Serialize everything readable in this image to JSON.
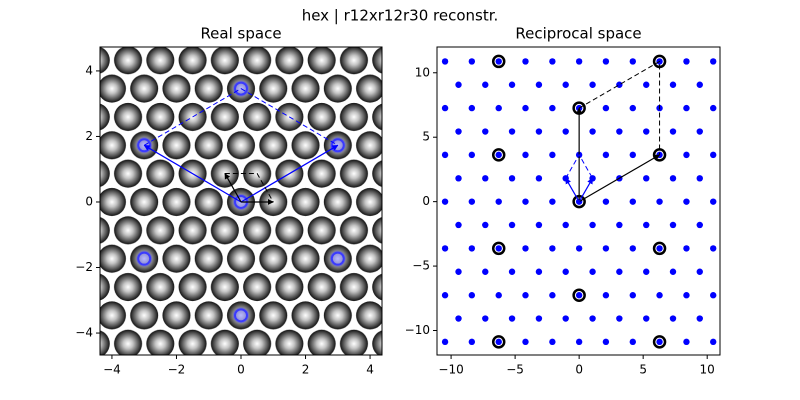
{
  "suptitle": "hex | r12xr12r30 reconstr.",
  "chart_data": [
    {
      "type": "scatter",
      "title": "Real space",
      "xlim": [
        -4.37,
        4.37
      ],
      "ylim": [
        -4.67,
        4.73
      ],
      "xticks": [
        {
          "value": -4,
          "label": "−4"
        },
        {
          "value": -2,
          "label": "−2"
        },
        0,
        2,
        4
      ],
      "yticks": [
        {
          "value": -4,
          "label": "−4"
        },
        {
          "value": -2,
          "label": "−2"
        },
        0,
        2,
        4
      ],
      "highlight": {
        "color": "#3a3aff",
        "x": [
          0,
          3,
          -3,
          0,
          3,
          -3,
          0
        ],
        "y": [
          0,
          1.73,
          1.73,
          3.46,
          -1.73,
          -1.73,
          -3.46
        ]
      },
      "vectors": [
        {
          "x": [
            0,
            3
          ],
          "y": [
            0,
            1.73
          ],
          "color": "#0000ff",
          "dashed": false,
          "arrow": true
        },
        {
          "x": [
            0,
            -3
          ],
          "y": [
            0,
            1.73
          ],
          "color": "#0000ff",
          "dashed": false,
          "arrow": true
        },
        {
          "x": [
            -3,
            0,
            3
          ],
          "y": [
            1.73,
            3.46,
            1.73
          ],
          "color": "#0000ff",
          "dashed": true,
          "arrow": false
        },
        {
          "x": [
            0,
            1
          ],
          "y": [
            0,
            0
          ],
          "color": "#000000",
          "dashed": false,
          "arrow": true
        },
        {
          "x": [
            0,
            -0.5
          ],
          "y": [
            0,
            0.87
          ],
          "color": "#000000",
          "dashed": false,
          "arrow": true
        },
        {
          "x": [
            -0.5,
            0.5,
            1
          ],
          "y": [
            0.87,
            0.87,
            0
          ],
          "color": "#000000",
          "dashed": true,
          "arrow": false
        }
      ]
    },
    {
      "type": "scatter",
      "title": "Reciprocal space",
      "xlim": [
        -11.1,
        11.0
      ],
      "ylim": [
        -11.9,
        12.0
      ],
      "xticks": [
        {
          "value": -10,
          "label": "−10"
        },
        {
          "value": -5,
          "label": "−5"
        },
        0,
        5,
        10
      ],
      "yticks": [
        {
          "value": -10,
          "label": "−10"
        },
        {
          "value": -5,
          "label": "−5"
        },
        0,
        5,
        10
      ],
      "points": {
        "color": "#0000ff",
        "rows": [
          {
            "y": -10.88,
            "x": [
              -10.47,
              -8.38,
              -6.28,
              -4.19,
              -2.09,
              0,
              2.09,
              4.19,
              6.28,
              8.38,
              10.47
            ]
          },
          {
            "y": -9.07,
            "x": [
              -9.42,
              -7.33,
              -5.24,
              -3.14,
              -1.05,
              1.05,
              3.14,
              5.24,
              7.33,
              9.42
            ]
          },
          {
            "y": -7.26,
            "x": [
              -10.47,
              -8.38,
              -6.28,
              -4.19,
              -2.09,
              0,
              2.09,
              4.19,
              6.28,
              8.38,
              10.47
            ]
          },
          {
            "y": -5.44,
            "x": [
              -9.42,
              -7.33,
              -5.24,
              -3.14,
              -1.05,
              1.05,
              3.14,
              5.24,
              7.33,
              9.42
            ]
          },
          {
            "y": -3.63,
            "x": [
              -10.47,
              -8.38,
              -6.28,
              -4.19,
              -2.09,
              0,
              2.09,
              4.19,
              6.28,
              8.38,
              10.47
            ]
          },
          {
            "y": -1.81,
            "x": [
              -9.42,
              -7.33,
              -5.24,
              -3.14,
              -1.05,
              1.05,
              3.14,
              5.24,
              7.33,
              9.42
            ]
          },
          {
            "y": 0,
            "x": [
              -10.47,
              -8.38,
              -6.28,
              -4.19,
              -2.09,
              0,
              2.09,
              4.19,
              6.28,
              8.38,
              10.47
            ]
          },
          {
            "y": 1.81,
            "x": [
              -9.42,
              -7.33,
              -5.24,
              -3.14,
              -1.05,
              1.05,
              3.14,
              5.24,
              7.33,
              9.42
            ]
          },
          {
            "y": 3.63,
            "x": [
              -10.47,
              -8.38,
              -6.28,
              -4.19,
              -2.09,
              0,
              2.09,
              4.19,
              6.28,
              8.38,
              10.47
            ]
          },
          {
            "y": 5.44,
            "x": [
              -9.42,
              -7.33,
              -5.24,
              -3.14,
              -1.05,
              1.05,
              3.14,
              5.24,
              7.33,
              9.42
            ]
          },
          {
            "y": 7.26,
            "x": [
              -10.47,
              -8.38,
              -6.28,
              -4.19,
              -2.09,
              0,
              2.09,
              4.19,
              6.28,
              8.38,
              10.47
            ]
          },
          {
            "y": 9.07,
            "x": [
              -9.42,
              -7.33,
              -5.24,
              -3.14,
              -1.05,
              1.05,
              3.14,
              5.24,
              7.33,
              9.42
            ]
          },
          {
            "y": 10.88,
            "x": [
              -10.47,
              -8.38,
              -6.28,
              -4.19,
              -2.09,
              0,
              2.09,
              4.19,
              6.28,
              8.38,
              10.47
            ]
          }
        ]
      },
      "substrate": {
        "color": "#000000",
        "x": [
          -6.28,
          6.28,
          0,
          -6.28,
          6.28,
          0,
          -6.28,
          6.28,
          0,
          -6.28,
          6.28
        ],
        "y": [
          10.88,
          10.88,
          7.26,
          3.63,
          3.63,
          0,
          -3.63,
          -3.63,
          -7.26,
          -10.88,
          -10.88
        ]
      },
      "vectors": [
        {
          "x": [
            0,
            0
          ],
          "y": [
            0,
            7.26
          ],
          "color": "#000000",
          "dashed": false,
          "arrow": true
        },
        {
          "x": [
            0,
            6.28
          ],
          "y": [
            0,
            3.63
          ],
          "color": "#000000",
          "dashed": false,
          "arrow": true
        },
        {
          "x": [
            0,
            6.28,
            6.28
          ],
          "y": [
            7.26,
            10.88,
            3.63
          ],
          "color": "#000000",
          "dashed": true,
          "arrow": false
        },
        {
          "x": [
            0,
            -1.05
          ],
          "y": [
            0,
            1.81
          ],
          "color": "#0000ff",
          "dashed": false,
          "arrow": true
        },
        {
          "x": [
            0,
            1.05
          ],
          "y": [
            0,
            1.81
          ],
          "color": "#0000ff",
          "dashed": false,
          "arrow": true
        },
        {
          "x": [
            -1.05,
            0,
            1.05
          ],
          "y": [
            1.81,
            3.63,
            1.81
          ],
          "color": "#0000ff",
          "dashed": true,
          "arrow": false
        }
      ]
    }
  ]
}
